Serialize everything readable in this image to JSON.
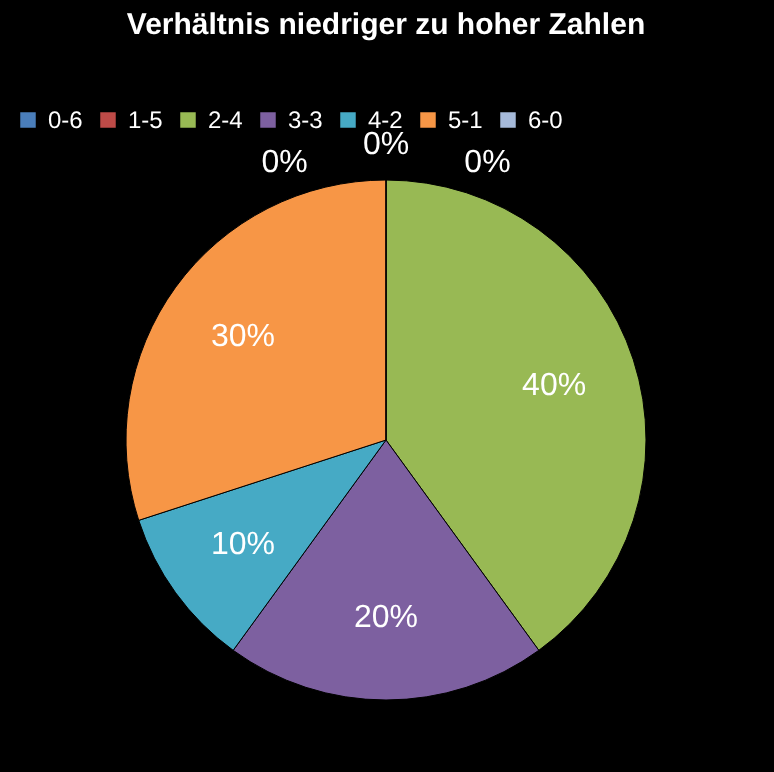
{
  "chart_data": {
    "type": "pie",
    "title": "Verhältnis niedriger zu hoher Zahlen",
    "categories": [
      "0-6",
      "1-5",
      "2-4",
      "3-3",
      "4-2",
      "5-1",
      "6-0"
    ],
    "values": [
      0,
      0,
      40,
      20,
      10,
      30,
      0
    ],
    "colors": [
      "#4a7ebb",
      "#be4b48",
      "#98b954",
      "#7d60a0",
      "#46aac5",
      "#f79646",
      "#a5b9d9"
    ],
    "value_labels": [
      "0%",
      "0%",
      "40%",
      "20%",
      "10%",
      "30%",
      "0%"
    ],
    "legend": "top"
  }
}
